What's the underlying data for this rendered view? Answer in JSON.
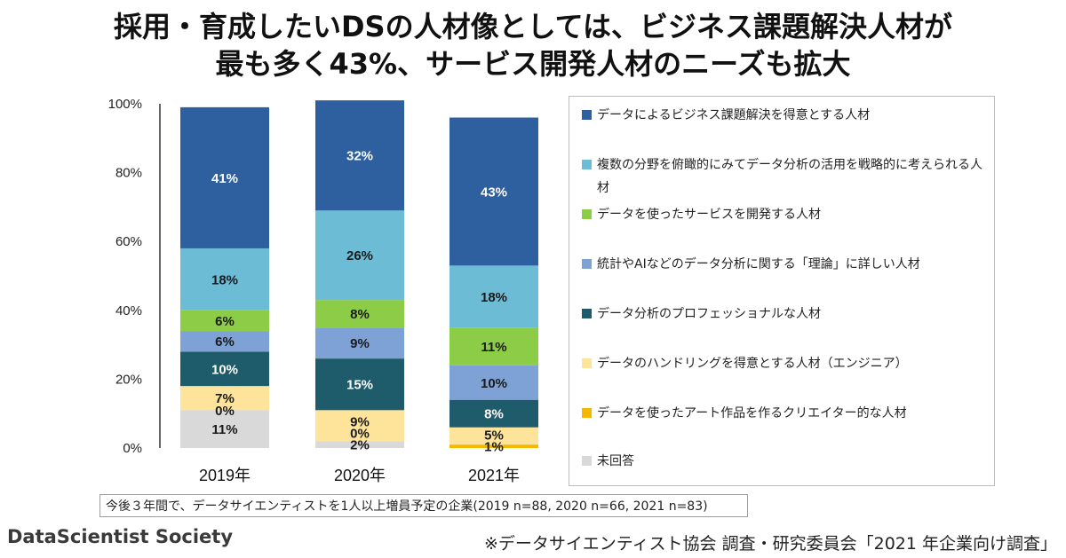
{
  "title_line1": "採用・育成したいDSの人材像としては、ビジネス課題解決人材が",
  "title_line2": "最も多く43%、サービス開発人材のニーズも拡大",
  "note": "今後３年間で、データサイエンティストを1人以上増員予定の企業(2019 n=88, 2020 n=66, 2021 n=83)",
  "logo_text": "DataScientist Society",
  "source": "※データサイエンティスト協会 調査・研究委員会「2021 年企業向け調査」",
  "chart_data": {
    "type": "bar",
    "stacked": true,
    "categories": [
      "2019年",
      "2020年",
      "2021年"
    ],
    "y_ticks": [
      "0%",
      "20%",
      "40%",
      "60%",
      "80%",
      "100%"
    ],
    "ylim": [
      0,
      100
    ],
    "legend_position": "right",
    "series": [
      {
        "name": "未回答",
        "color": "#d9d9d9",
        "values": [
          11,
          2,
          0
        ],
        "labels": [
          "11%",
          "2%",
          ""
        ]
      },
      {
        "name": "データを使ったアート作品を作るクリエイター的な人材",
        "color": "#f5b800",
        "values": [
          0,
          0,
          1
        ],
        "labels": [
          "0%",
          "0%",
          "1%"
        ]
      },
      {
        "name": "データのハンドリングを得意とする人材（エンジニア）",
        "color": "#fde49a",
        "values": [
          7,
          9,
          5
        ],
        "labels": [
          "7%",
          "9%",
          "5%"
        ]
      },
      {
        "name": "データ分析のプロフェッショナルな人材",
        "color": "#1f5c6b",
        "values": [
          10,
          15,
          8
        ],
        "labels": [
          "10%",
          "15%",
          "8%"
        ]
      },
      {
        "name": "統計やAIなどのデータ分析に関する「理論」に詳しい人材",
        "color": "#7ea2d6",
        "values": [
          6,
          9,
          10
        ],
        "labels": [
          "6%",
          "9%",
          "10%"
        ]
      },
      {
        "name": "データを使ったサービスを開発する人材",
        "color": "#8ccc47",
        "values": [
          6,
          8,
          11
        ],
        "labels": [
          "6%",
          "8%",
          "11%"
        ]
      },
      {
        "name": "複数の分野を俯瞰的にみてデータ分析の活用を戦略的に考えられる人材",
        "color": "#6cbcd6",
        "values": [
          18,
          26,
          18
        ],
        "labels": [
          "18%",
          "26%",
          "18%"
        ]
      },
      {
        "name": "データによるビジネス課題解決を得意とする人材",
        "color": "#2e5f9e",
        "values": [
          41,
          32,
          43
        ],
        "labels": [
          "41%",
          "32%",
          "43%"
        ]
      }
    ],
    "legend_order": [
      7,
      6,
      5,
      4,
      3,
      2,
      1,
      0
    ]
  }
}
